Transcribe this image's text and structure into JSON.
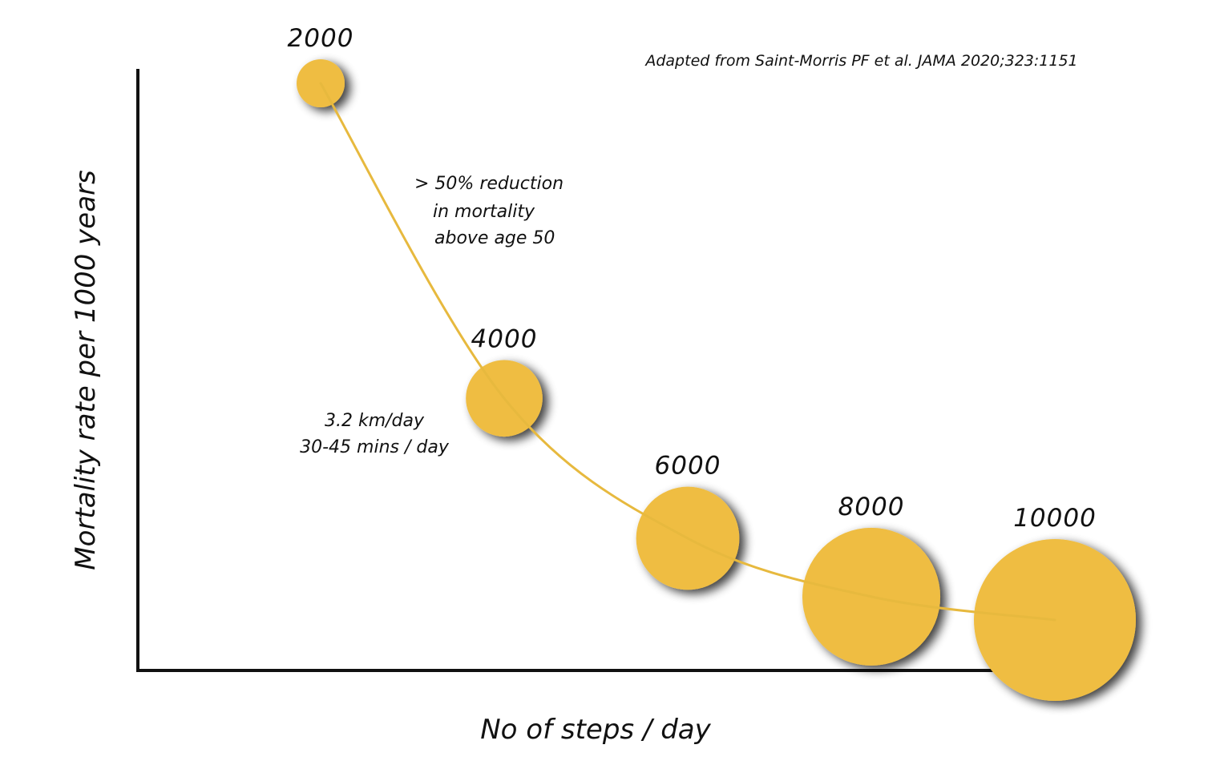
{
  "chart_data": {
    "type": "scatter",
    "title": "",
    "xlabel": "No of steps / day",
    "ylabel": "Mortality rate per 1000 years",
    "source": "Adapted from Saint-Morris PF et al. JAMA 2020;323:1151",
    "annotations": {
      "reduction": [
        "> 50% reduction",
        "in mortality",
        "above age 50"
      ],
      "walking": [
        "3.2 km/day",
        "30-45 mins / day"
      ]
    },
    "x": [
      2000,
      4000,
      6000,
      8000,
      10000
    ],
    "point_labels": [
      "2000",
      "4000",
      "6000",
      "8000",
      "10000"
    ],
    "y": [
      100,
      46,
      22,
      12,
      8
    ],
    "bubble_size": [
      1,
      2.5,
      4.5,
      8,
      11
    ],
    "trend": "decreasing curve through bubble centers",
    "axes_ticks": false,
    "grid": false,
    "legend": false
  },
  "colors": {
    "bubble": "#efbd42",
    "curve": "#e7b93e",
    "axis": "#111111",
    "text": "#111111"
  }
}
